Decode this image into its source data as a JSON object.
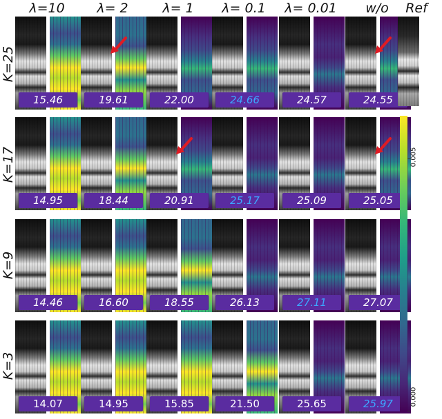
{
  "columns": [
    "λ=10",
    "λ= 2",
    "λ= 1",
    "λ= 0.1",
    "λ= 0.01",
    "w/o",
    "Ref"
  ],
  "rows": [
    {
      "label": "K=25",
      "psnr": [
        "15.46",
        "19.61",
        "22.00",
        "24.66",
        "24.57",
        "24.55"
      ],
      "best_index": 3,
      "plain_indices": []
    },
    {
      "label": "K=17",
      "psnr": [
        "14.95",
        "18.44",
        "20.91",
        "25.17",
        "25.09",
        "25.05"
      ],
      "best_index": 3,
      "plain_indices": []
    },
    {
      "label": "K=9",
      "psnr": [
        "14.46",
        "16.60",
        "18.55",
        "26.13",
        "27.11",
        "27.07"
      ],
      "best_index": 4,
      "plain_indices": []
    },
    {
      "label": "K=3",
      "psnr": [
        "14.07",
        "14.95",
        "15.85",
        "21.50",
        "25.65",
        "25.97"
      ],
      "best_index": 5,
      "plain_indices": [
        0,
        1,
        2,
        3,
        4
      ]
    }
  ],
  "colorbar": {
    "max_label": "0.005",
    "min_label": "0.000",
    "colormap": "viridis"
  },
  "colors": {
    "psnr_bg": "#5a2ca0",
    "best_text": "#3da7ff",
    "arrow": "#e01b24"
  }
}
